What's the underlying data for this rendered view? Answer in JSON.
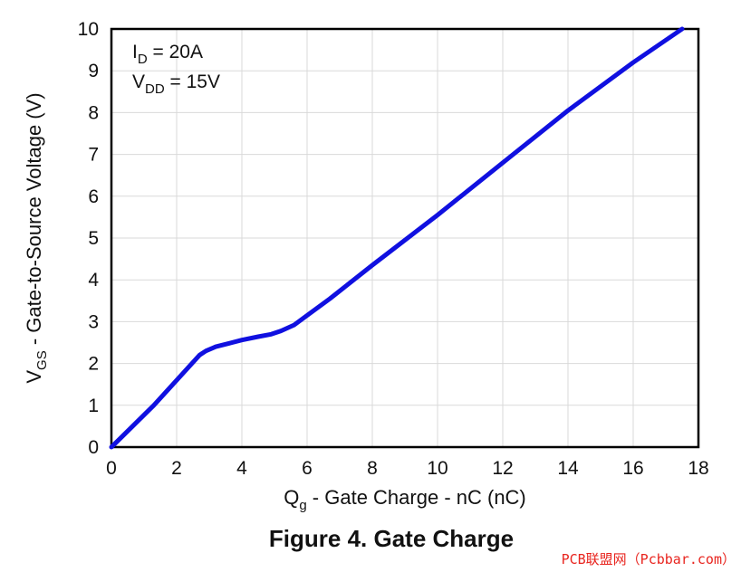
{
  "chart_data": {
    "type": "line",
    "title": "Figure 4. Gate Charge",
    "xlabel": "Q",
    "xlabel_sub": "g",
    "xlabel_rest": " - Gate Charge - nC (nC)",
    "ylabel": "V",
    "ylabel_sub": "GS",
    "ylabel_rest": " - Gate-to-Source Voltage (V)",
    "xlim": [
      0,
      18
    ],
    "ylim": [
      0,
      10
    ],
    "x_ticks": [
      "0",
      "2",
      "4",
      "6",
      "8",
      "10",
      "12",
      "14",
      "16",
      "18"
    ],
    "y_ticks": [
      "0",
      "1",
      "2",
      "3",
      "4",
      "5",
      "6",
      "7",
      "8",
      "9",
      "10"
    ],
    "grid": true,
    "series_color": "#1010e0",
    "annotations": [
      {
        "main": "I",
        "sub": "D",
        "rest": " = 20A"
      },
      {
        "main": "V",
        "sub": "DD",
        "rest": " = 15V"
      }
    ],
    "series": [
      {
        "x": [
          0,
          1.3,
          2.7,
          2.9,
          3.2,
          3.6,
          4.0,
          4.5,
          4.9,
          5.2,
          5.6,
          6.0,
          6.7,
          8.0,
          10.0,
          12.0,
          14.0,
          16.0,
          17.5
        ],
        "y": [
          0,
          1.0,
          2.2,
          2.3,
          2.4,
          2.48,
          2.56,
          2.64,
          2.7,
          2.78,
          2.92,
          3.15,
          3.55,
          4.35,
          5.55,
          6.8,
          8.05,
          9.2,
          10.0
        ]
      }
    ]
  },
  "watermark": "PCB联盟网（Pcbbar.com）"
}
